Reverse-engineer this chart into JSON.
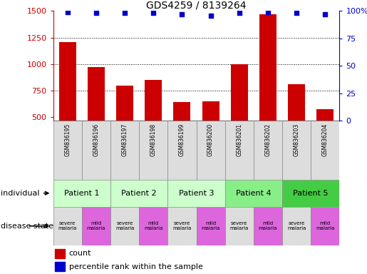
{
  "title": "GDS4259 / 8139264",
  "samples": [
    "GSM836195",
    "GSM836196",
    "GSM836197",
    "GSM836198",
    "GSM836199",
    "GSM836200",
    "GSM836201",
    "GSM836202",
    "GSM836203",
    "GSM836204"
  ],
  "counts": [
    1210,
    970,
    800,
    850,
    645,
    650,
    1000,
    1470,
    810,
    580
  ],
  "percentile_ranks": [
    99,
    98,
    98,
    98,
    97,
    96,
    98,
    99,
    98,
    97
  ],
  "ylim_left": [
    470,
    1500
  ],
  "ylim_right": [
    0,
    100
  ],
  "yticks_left": [
    500,
    750,
    1000,
    1250,
    1500
  ],
  "yticks_right": [
    0,
    25,
    50,
    75,
    100
  ],
  "bar_color": "#cc0000",
  "dot_color": "#0000cc",
  "patients": [
    {
      "label": "Patient 1",
      "cols": [
        0,
        1
      ],
      "color": "#ccffcc"
    },
    {
      "label": "Patient 2",
      "cols": [
        2,
        3
      ],
      "color": "#ccffcc"
    },
    {
      "label": "Patient 3",
      "cols": [
        4,
        5
      ],
      "color": "#ccffcc"
    },
    {
      "label": "Patient 4",
      "cols": [
        6,
        7
      ],
      "color": "#88ee88"
    },
    {
      "label": "Patient 5",
      "cols": [
        8,
        9
      ],
      "color": "#44cc44"
    }
  ],
  "disease_states": [
    {
      "label": "severe\nmalaria",
      "col": 0,
      "color": "#dddddd"
    },
    {
      "label": "mild\nmalaria",
      "col": 1,
      "color": "#dd66dd"
    },
    {
      "label": "severe\nmalaria",
      "col": 2,
      "color": "#dddddd"
    },
    {
      "label": "mild\nmalaria",
      "col": 3,
      "color": "#dd66dd"
    },
    {
      "label": "severe\nmalaria",
      "col": 4,
      "color": "#dddddd"
    },
    {
      "label": "mild\nmalaria",
      "col": 5,
      "color": "#dd66dd"
    },
    {
      "label": "severe\nmalaria",
      "col": 6,
      "color": "#dddddd"
    },
    {
      "label": "mild\nmalaria",
      "col": 7,
      "color": "#dd66dd"
    },
    {
      "label": "severe\nmalaria",
      "col": 8,
      "color": "#dddddd"
    },
    {
      "label": "mild\nmalaria",
      "col": 9,
      "color": "#dd66dd"
    }
  ],
  "left_axis_color": "#cc0000",
  "right_axis_color": "#0000cc",
  "grid_yticks": [
    750,
    1000,
    1250
  ],
  "annotation_individual": "individual",
  "annotation_disease": "disease state",
  "legend_count": "count",
  "legend_percentile": "percentile rank within the sample",
  "fig_width": 5.15,
  "fig_height": 3.84,
  "fig_dpi": 100
}
